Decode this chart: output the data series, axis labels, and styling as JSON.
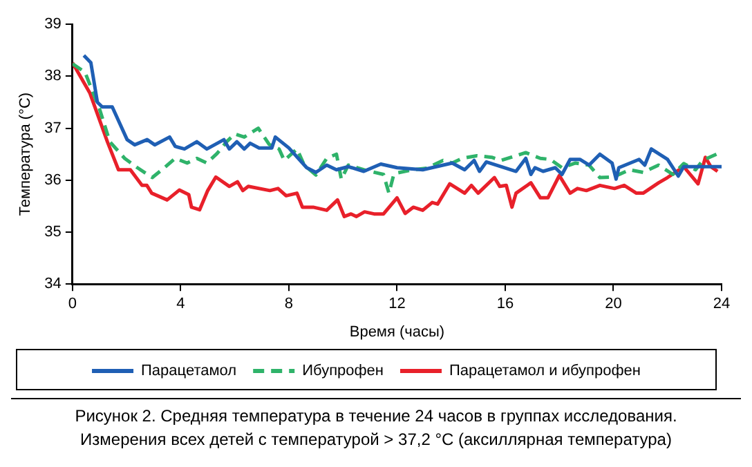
{
  "chart_data": {
    "type": "line",
    "xlabel": "Время (часы)",
    "ylabel": "Температура (°C)",
    "xlim": [
      0,
      24
    ],
    "xticks": [
      0,
      4,
      8,
      12,
      16,
      20,
      24
    ],
    "ylim": [
      34,
      39
    ],
    "yticks": [
      34,
      35,
      36,
      37,
      38,
      39
    ],
    "grid": false,
    "legend": "bottom",
    "marker": "none",
    "series": [
      {
        "name": "Парацетамол",
        "color": "#1f5fb4",
        "line_style": "solid",
        "x": [
          0.42,
          0.68,
          0.92,
          1.1,
          1.47,
          2.02,
          2.3,
          2.76,
          3.04,
          3.59,
          3.8,
          4.14,
          4.6,
          4.97,
          5.6,
          5.8,
          6.08,
          6.35,
          6.57,
          6.9,
          7.37,
          7.5,
          8.0,
          8.66,
          9.0,
          9.4,
          9.76,
          10.2,
          10.77,
          11.4,
          12.0,
          12.95,
          14.04,
          14.5,
          14.85,
          15.05,
          15.3,
          16.4,
          16.76,
          16.95,
          17.1,
          17.4,
          17.85,
          18.1,
          18.4,
          18.76,
          19.1,
          19.5,
          19.95,
          20.1,
          20.2,
          20.95,
          21.16,
          21.4,
          22.0,
          22.4,
          22.6,
          23.85,
          24
        ],
        "values": [
          38.4,
          38.26,
          37.5,
          37.41,
          37.41,
          36.78,
          36.68,
          36.78,
          36.68,
          36.83,
          36.65,
          36.6,
          36.74,
          36.6,
          36.78,
          36.6,
          36.74,
          36.6,
          36.71,
          36.62,
          36.62,
          36.83,
          36.62,
          36.24,
          36.15,
          36.29,
          36.2,
          36.26,
          36.17,
          36.31,
          36.24,
          36.2,
          36.33,
          36.2,
          36.38,
          36.17,
          36.35,
          36.17,
          36.42,
          36.11,
          36.24,
          36.17,
          36.24,
          36.11,
          36.4,
          36.4,
          36.29,
          36.5,
          36.33,
          36.02,
          36.24,
          36.4,
          36.29,
          36.6,
          36.4,
          36.08,
          36.26,
          36.26,
          36.26
        ]
      },
      {
        "name": "Ибупрофен",
        "color": "#2fb36a",
        "line_style": "dashed",
        "x": [
          0,
          0.46,
          1.0,
          1.38,
          1.93,
          2.4,
          2.95,
          3.4,
          3.8,
          4.24,
          4.6,
          4.97,
          5.34,
          5.7,
          6.0,
          6.35,
          6.87,
          7.27,
          7.64,
          7.83,
          8.3,
          8.57,
          9.0,
          9.4,
          9.76,
          9.94,
          10.2,
          10.77,
          11.5,
          11.7,
          11.88,
          12.0,
          12.6,
          13.1,
          13.7,
          14.04,
          14.4,
          14.95,
          15.5,
          15.85,
          16.4,
          16.76,
          17.3,
          17.67,
          18.1,
          18.6,
          19.1,
          19.5,
          20.0,
          20.6,
          21.1,
          21.67,
          22.2,
          22.6,
          23.04,
          23.3,
          23.85
        ],
        "values": [
          38.24,
          38.08,
          37.37,
          36.74,
          36.42,
          36.24,
          36.05,
          36.24,
          36.42,
          36.33,
          36.42,
          36.33,
          36.51,
          36.74,
          36.89,
          36.83,
          37.0,
          36.69,
          36.6,
          36.38,
          36.6,
          36.29,
          36.1,
          36.42,
          36.5,
          36.02,
          36.29,
          36.2,
          36.11,
          35.75,
          36.11,
          36.14,
          36.2,
          36.23,
          36.38,
          36.33,
          36.42,
          36.47,
          36.44,
          36.38,
          36.47,
          36.53,
          36.42,
          36.4,
          36.24,
          36.33,
          36.29,
          36.05,
          36.06,
          36.2,
          36.15,
          36.29,
          36.11,
          36.32,
          36.2,
          36.38,
          36.51
        ]
      },
      {
        "name": "Парацетамол и ибупрофен",
        "color": "#e8202a",
        "line_style": "solid",
        "x": [
          0,
          0.64,
          1.29,
          1.7,
          2.14,
          2.57,
          2.75,
          2.93,
          3.5,
          3.95,
          4.3,
          4.4,
          4.7,
          5.0,
          5.3,
          5.8,
          6.1,
          6.3,
          6.5,
          7.3,
          7.6,
          7.9,
          8.3,
          8.5,
          8.9,
          9.4,
          9.8,
          10.05,
          10.3,
          10.5,
          10.8,
          11.15,
          11.5,
          12.0,
          12.3,
          12.6,
          12.95,
          13.3,
          13.5,
          13.95,
          14.5,
          14.75,
          15.0,
          15.6,
          15.8,
          16.04,
          16.25,
          16.4,
          16.95,
          17.3,
          17.58,
          18.0,
          18.4,
          18.67,
          19.0,
          19.5,
          20.04,
          20.4,
          20.85,
          21.1,
          21.67,
          22.0,
          22.6,
          23.13,
          23.4,
          23.6,
          23.85
        ],
        "values": [
          38.26,
          37.68,
          36.74,
          36.2,
          36.2,
          35.9,
          35.9,
          35.75,
          35.62,
          35.81,
          35.72,
          35.48,
          35.43,
          35.8,
          36.06,
          35.88,
          35.97,
          35.8,
          35.88,
          35.8,
          35.84,
          35.7,
          35.75,
          35.48,
          35.48,
          35.42,
          35.62,
          35.3,
          35.35,
          35.3,
          35.39,
          35.35,
          35.35,
          35.66,
          35.36,
          35.48,
          35.42,
          35.57,
          35.54,
          35.93,
          35.75,
          35.9,
          35.75,
          36.05,
          35.88,
          35.9,
          35.48,
          35.75,
          35.95,
          35.66,
          35.66,
          36.09,
          35.75,
          35.84,
          35.8,
          35.9,
          35.84,
          35.9,
          35.75,
          35.75,
          35.95,
          36.05,
          36.26,
          35.93,
          36.44,
          36.26,
          36.17
        ]
      }
    ],
    "annotations": [
      "Рисунок 2.  Средняя температура в течение 24 часов в группах исследования.",
      "Измерения всех детей с температурой > 37,2 °C (аксиллярная температура)"
    ]
  }
}
